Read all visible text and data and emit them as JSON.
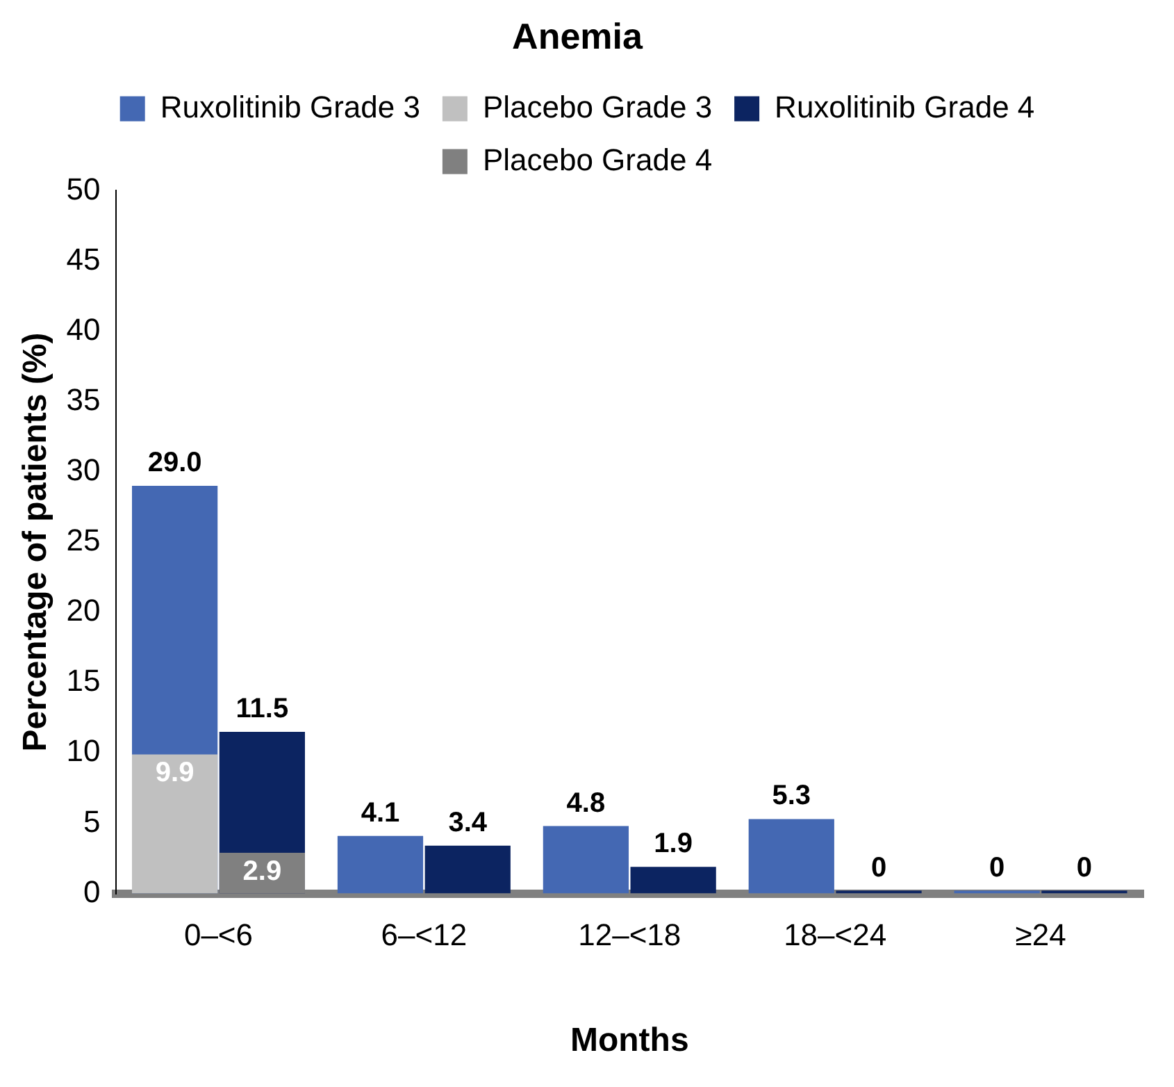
{
  "chart_data": {
    "type": "bar",
    "title": "Anemia",
    "xlabel": "Months",
    "ylabel": "Percentage of patients (%)",
    "categories": [
      "0–<6",
      "6–<12",
      "12–<18",
      "18–<24",
      "≥24"
    ],
    "series": [
      {
        "name": "Ruxolitinib Grade 3",
        "color": "#4468b3",
        "values": [
          29.0,
          4.1,
          4.8,
          5.3,
          0
        ],
        "value_labels": [
          "29.0",
          "4.1",
          "4.8",
          "5.3",
          "0"
        ]
      },
      {
        "name": "Placebo Grade 3",
        "color": "#c0c0c0",
        "values": [
          9.9,
          null,
          null,
          null,
          null
        ],
        "value_labels": [
          "9.9",
          null,
          null,
          null,
          null
        ]
      },
      {
        "name": "Ruxolitinib Grade 4",
        "color": "#0c2461",
        "values": [
          11.5,
          3.4,
          1.9,
          0,
          0
        ],
        "value_labels": [
          "11.5",
          "3.4",
          "1.9",
          "0",
          "0"
        ]
      },
      {
        "name": "Placebo Grade 4",
        "color": "#808080",
        "values": [
          2.9,
          null,
          null,
          null,
          null
        ],
        "value_labels": [
          "2.9",
          null,
          null,
          null,
          null
        ]
      }
    ],
    "ylim": [
      0,
      50
    ],
    "yticks": [
      0,
      5,
      10,
      15,
      20,
      25,
      30,
      35,
      40,
      45,
      50
    ],
    "grid": false,
    "legend": "top"
  }
}
